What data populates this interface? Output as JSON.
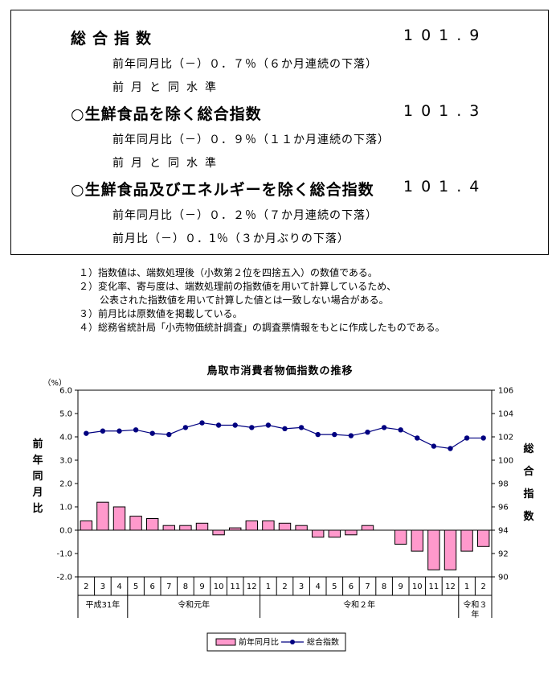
{
  "summary": {
    "rows": [
      {
        "label": "総合指数",
        "value": "101.9",
        "subs": [
          "前年同月比（－）０．７％（６か月連続の下落）",
          "前月と同水準"
        ]
      },
      {
        "label": "○生鮮食品を除く総合指数",
        "value": "101.3",
        "subs": [
          "前年同月比（－）０．９％（１１か月連続の下落）",
          "前月と同水準"
        ]
      },
      {
        "label": "○生鮮食品及びエネルギーを除く総合指数",
        "value": "101.4",
        "subs": [
          "前年同月比（－）０．２％（７か月連続の下落）",
          "前月比（－）０．1％（３か月ぶりの下落）"
        ]
      }
    ]
  },
  "notes": [
    "１）指数値は、端数処理後（小数第２位を四捨五入）の数値である。",
    "２）変化率、寄与度は、端数処理前の指数値を用いて計算しているため、",
    "公表された指数値を用いて計算した値とは一致しない場合がある。",
    "３）前月比は原数値を掲載している。",
    "４）総務省統計局「小売物価統計調査」の調査票情報をもとに作成したものである。"
  ],
  "chart_data": {
    "type": "bar",
    "title": "鳥取市消費者物価指数の推移",
    "categories": [
      "2",
      "3",
      "4",
      "5",
      "6",
      "7",
      "8",
      "9",
      "10",
      "11",
      "12",
      "1",
      "2",
      "3",
      "4",
      "5",
      "6",
      "7",
      "8",
      "9",
      "10",
      "11",
      "12",
      "1",
      "2"
    ],
    "year_groups": [
      {
        "label": "平成31年",
        "start": 0,
        "count": 3
      },
      {
        "label": "令和元年",
        "start": 3,
        "count": 8
      },
      {
        "label": "令和２年",
        "start": 11,
        "count": 12
      },
      {
        "label": "令和３年",
        "start": 23,
        "count": 2
      }
    ],
    "left_unit": "（%）",
    "left_axis_label": "前年同月比",
    "right_axis_label": "総合指数",
    "left_ylim": [
      -2.0,
      6.0
    ],
    "left_ticks": [
      "6.0",
      "5.0",
      "4.0",
      "3.0",
      "2.0",
      "1.0",
      "0.0",
      "-1.0",
      "-2.0"
    ],
    "right_ylim": [
      90,
      106
    ],
    "right_ticks": [
      "106",
      "104",
      "102",
      "100",
      "98",
      "96",
      "94",
      "92",
      "90"
    ],
    "series": [
      {
        "name": "前年同月比",
        "type": "bar",
        "color": "#ff99cc",
        "values": [
          0.4,
          1.2,
          1.0,
          0.6,
          0.5,
          0.2,
          0.2,
          0.3,
          -0.2,
          0.1,
          0.4,
          0.4,
          0.3,
          0.2,
          -0.3,
          -0.3,
          -0.2,
          0.2,
          0.0,
          -0.6,
          -0.9,
          -1.7,
          -1.7,
          -0.9,
          -0.7
        ]
      },
      {
        "name": "総合指数",
        "type": "line",
        "color": "#000080",
        "values": [
          102.3,
          102.5,
          102.5,
          102.6,
          102.3,
          102.2,
          102.8,
          103.2,
          103.0,
          103.0,
          102.8,
          103.0,
          102.7,
          102.8,
          102.2,
          102.2,
          102.1,
          102.4,
          102.8,
          102.6,
          101.9,
          101.2,
          101.0,
          101.9,
          101.9
        ]
      }
    ],
    "legend": {
      "placement": "bottom"
    }
  }
}
